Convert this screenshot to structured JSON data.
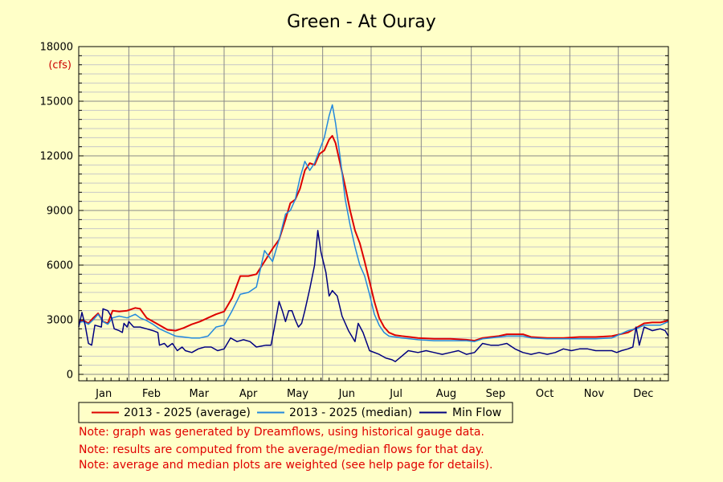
{
  "chart_data": {
    "type": "line",
    "title": "Green - At Ouray",
    "y_unit": "(cfs)",
    "ylim": [
      0,
      18000
    ],
    "y_ticks": [
      0,
      3000,
      6000,
      9000,
      12000,
      15000,
      18000
    ],
    "xlim": [
      0,
      365
    ],
    "month_labels": [
      "Jan",
      "Feb",
      "Mar",
      "Apr",
      "May",
      "Jun",
      "Jul",
      "Aug",
      "Sep",
      "Oct",
      "Nov",
      "Dec"
    ],
    "month_starts": [
      0,
      31,
      59,
      90,
      120,
      151,
      181,
      212,
      243,
      273,
      304,
      334,
      365
    ],
    "grid": true,
    "legend_position": "bottom-left",
    "series": [
      {
        "name": "2013 - 2025 (average)",
        "color": "#dd0000",
        "points": [
          [
            0,
            2900
          ],
          [
            3,
            2950
          ],
          [
            6,
            2800
          ],
          [
            9,
            3100
          ],
          [
            12,
            3350
          ],
          [
            15,
            2900
          ],
          [
            18,
            2800
          ],
          [
            21,
            3500
          ],
          [
            25,
            3450
          ],
          [
            30,
            3500
          ],
          [
            35,
            3650
          ],
          [
            38,
            3600
          ],
          [
            42,
            3100
          ],
          [
            46,
            2900
          ],
          [
            50,
            2700
          ],
          [
            55,
            2450
          ],
          [
            60,
            2400
          ],
          [
            65,
            2550
          ],
          [
            70,
            2750
          ],
          [
            75,
            2900
          ],
          [
            80,
            3100
          ],
          [
            85,
            3300
          ],
          [
            90,
            3450
          ],
          [
            95,
            4200
          ],
          [
            100,
            5400
          ],
          [
            105,
            5400
          ],
          [
            110,
            5500
          ],
          [
            115,
            6200
          ],
          [
            120,
            6900
          ],
          [
            124,
            7400
          ],
          [
            128,
            8500
          ],
          [
            131,
            9400
          ],
          [
            134,
            9600
          ],
          [
            137,
            10200
          ],
          [
            140,
            11200
          ],
          [
            143,
            11600
          ],
          [
            146,
            11500
          ],
          [
            149,
            12100
          ],
          [
            152,
            12300
          ],
          [
            155,
            12900
          ],
          [
            157,
            13100
          ],
          [
            159,
            12700
          ],
          [
            162,
            11500
          ],
          [
            165,
            10300
          ],
          [
            168,
            9000
          ],
          [
            171,
            7900
          ],
          [
            174,
            7200
          ],
          [
            177,
            6200
          ],
          [
            180,
            5100
          ],
          [
            183,
            4000
          ],
          [
            186,
            3100
          ],
          [
            189,
            2600
          ],
          [
            192,
            2300
          ],
          [
            196,
            2150
          ],
          [
            200,
            2100
          ],
          [
            205,
            2050
          ],
          [
            210,
            2000
          ],
          [
            220,
            1950
          ],
          [
            230,
            1950
          ],
          [
            240,
            1900
          ],
          [
            245,
            1850
          ],
          [
            250,
            2000
          ],
          [
            255,
            2050
          ],
          [
            260,
            2100
          ],
          [
            265,
            2200
          ],
          [
            270,
            2200
          ],
          [
            275,
            2200
          ],
          [
            280,
            2050
          ],
          [
            290,
            2000
          ],
          [
            300,
            2000
          ],
          [
            310,
            2050
          ],
          [
            320,
            2050
          ],
          [
            330,
            2100
          ],
          [
            340,
            2300
          ],
          [
            345,
            2550
          ],
          [
            350,
            2800
          ],
          [
            355,
            2850
          ],
          [
            360,
            2850
          ],
          [
            365,
            2950
          ]
        ]
      },
      {
        "name": "2013 - 2025 (median)",
        "color": "#2288dd",
        "points": [
          [
            0,
            2850
          ],
          [
            3,
            2900
          ],
          [
            6,
            2750
          ],
          [
            9,
            3000
          ],
          [
            12,
            3300
          ],
          [
            15,
            2900
          ],
          [
            18,
            2750
          ],
          [
            21,
            3100
          ],
          [
            25,
            3200
          ],
          [
            30,
            3100
          ],
          [
            35,
            3300
          ],
          [
            38,
            3100
          ],
          [
            42,
            2950
          ],
          [
            46,
            2750
          ],
          [
            50,
            2500
          ],
          [
            55,
            2300
          ],
          [
            60,
            2100
          ],
          [
            65,
            2050
          ],
          [
            70,
            2000
          ],
          [
            75,
            2000
          ],
          [
            80,
            2100
          ],
          [
            85,
            2600
          ],
          [
            90,
            2700
          ],
          [
            95,
            3500
          ],
          [
            100,
            4400
          ],
          [
            105,
            4500
          ],
          [
            110,
            4800
          ],
          [
            115,
            6800
          ],
          [
            120,
            6200
          ],
          [
            124,
            7400
          ],
          [
            128,
            8800
          ],
          [
            131,
            9000
          ],
          [
            134,
            9600
          ],
          [
            137,
            10800
          ],
          [
            140,
            11700
          ],
          [
            143,
            11200
          ],
          [
            146,
            11600
          ],
          [
            149,
            12300
          ],
          [
            152,
            13000
          ],
          [
            155,
            14200
          ],
          [
            157,
            14800
          ],
          [
            159,
            13800
          ],
          [
            162,
            11800
          ],
          [
            165,
            9600
          ],
          [
            168,
            8200
          ],
          [
            171,
            7000
          ],
          [
            174,
            6000
          ],
          [
            177,
            5400
          ],
          [
            180,
            4400
          ],
          [
            183,
            3300
          ],
          [
            186,
            2700
          ],
          [
            189,
            2300
          ],
          [
            192,
            2100
          ],
          [
            196,
            2050
          ],
          [
            200,
            2000
          ],
          [
            205,
            1950
          ],
          [
            210,
            1900
          ],
          [
            220,
            1850
          ],
          [
            230,
            1850
          ],
          [
            240,
            1850
          ],
          [
            245,
            1800
          ],
          [
            250,
            1950
          ],
          [
            255,
            2000
          ],
          [
            260,
            2050
          ],
          [
            265,
            2100
          ],
          [
            270,
            2100
          ],
          [
            275,
            2100
          ],
          [
            280,
            2000
          ],
          [
            290,
            1950
          ],
          [
            300,
            1950
          ],
          [
            310,
            1950
          ],
          [
            320,
            1950
          ],
          [
            330,
            2000
          ],
          [
            340,
            2400
          ],
          [
            345,
            2500
          ],
          [
            350,
            2700
          ],
          [
            355,
            2700
          ],
          [
            360,
            2700
          ],
          [
            365,
            2900
          ]
        ]
      },
      {
        "name": "Min Flow",
        "color": "#000080",
        "points": [
          [
            0,
            2600
          ],
          [
            2,
            3400
          ],
          [
            4,
            2700
          ],
          [
            6,
            1700
          ],
          [
            8,
            1600
          ],
          [
            10,
            2700
          ],
          [
            14,
            2600
          ],
          [
            15,
            3600
          ],
          [
            18,
            3500
          ],
          [
            20,
            3200
          ],
          [
            22,
            2500
          ],
          [
            25,
            2400
          ],
          [
            27,
            2300
          ],
          [
            28,
            2800
          ],
          [
            30,
            2600
          ],
          [
            31,
            2900
          ],
          [
            34,
            2600
          ],
          [
            38,
            2600
          ],
          [
            42,
            2500
          ],
          [
            46,
            2400
          ],
          [
            49,
            2300
          ],
          [
            50,
            1600
          ],
          [
            53,
            1700
          ],
          [
            55,
            1500
          ],
          [
            58,
            1700
          ],
          [
            61,
            1300
          ],
          [
            64,
            1500
          ],
          [
            66,
            1300
          ],
          [
            70,
            1200
          ],
          [
            74,
            1400
          ],
          [
            78,
            1500
          ],
          [
            82,
            1500
          ],
          [
            86,
            1300
          ],
          [
            90,
            1400
          ],
          [
            94,
            2000
          ],
          [
            98,
            1800
          ],
          [
            102,
            1900
          ],
          [
            106,
            1800
          ],
          [
            110,
            1500
          ],
          [
            116,
            1600
          ],
          [
            119,
            1600
          ],
          [
            121,
            2500
          ],
          [
            124,
            4000
          ],
          [
            126,
            3500
          ],
          [
            128,
            2900
          ],
          [
            130,
            3500
          ],
          [
            132,
            3500
          ],
          [
            134,
            3000
          ],
          [
            136,
            2600
          ],
          [
            138,
            2800
          ],
          [
            140,
            3500
          ],
          [
            143,
            4700
          ],
          [
            146,
            6000
          ],
          [
            148,
            7900
          ],
          [
            150,
            6700
          ],
          [
            153,
            5600
          ],
          [
            155,
            4300
          ],
          [
            157,
            4600
          ],
          [
            160,
            4300
          ],
          [
            163,
            3200
          ],
          [
            167,
            2400
          ],
          [
            171,
            1800
          ],
          [
            173,
            2800
          ],
          [
            176,
            2300
          ],
          [
            180,
            1300
          ],
          [
            186,
            1100
          ],
          [
            190,
            900
          ],
          [
            194,
            800
          ],
          [
            196,
            700
          ],
          [
            200,
            1000
          ],
          [
            204,
            1300
          ],
          [
            210,
            1200
          ],
          [
            215,
            1300
          ],
          [
            220,
            1200
          ],
          [
            225,
            1100
          ],
          [
            230,
            1200
          ],
          [
            235,
            1300
          ],
          [
            240,
            1100
          ],
          [
            245,
            1200
          ],
          [
            250,
            1700
          ],
          [
            255,
            1600
          ],
          [
            260,
            1600
          ],
          [
            265,
            1700
          ],
          [
            270,
            1400
          ],
          [
            275,
            1200
          ],
          [
            280,
            1100
          ],
          [
            285,
            1200
          ],
          [
            290,
            1100
          ],
          [
            295,
            1200
          ],
          [
            300,
            1400
          ],
          [
            305,
            1300
          ],
          [
            310,
            1400
          ],
          [
            315,
            1400
          ],
          [
            320,
            1300
          ],
          [
            325,
            1300
          ],
          [
            330,
            1300
          ],
          [
            333,
            1200
          ],
          [
            336,
            1300
          ],
          [
            340,
            1400
          ],
          [
            343,
            1500
          ],
          [
            345,
            2600
          ],
          [
            347,
            1600
          ],
          [
            350,
            2600
          ],
          [
            355,
            2400
          ],
          [
            360,
            2500
          ],
          [
            363,
            2400
          ],
          [
            365,
            2100
          ]
        ]
      }
    ]
  },
  "notes": [
    "Note: graph was generated by Dreamflows, using historical gauge data.",
    "Note: results are computed from the average/median flows for that day.",
    "Note: average and median plots are weighted (see help page for details)."
  ]
}
